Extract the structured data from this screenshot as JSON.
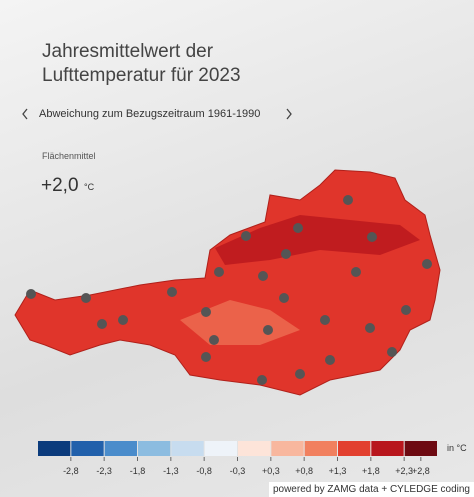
{
  "header": {
    "title_lines": [
      "Jahresmittelwert der",
      "Lufttemperatur für 2023"
    ],
    "period": "Abweichung zum Bezugszeitraum 1961-1990"
  },
  "summary": {
    "label": "Flächenmittel",
    "value": "+2,0",
    "unit": "°C"
  },
  "legend": {
    "unit": "in °C",
    "colors": [
      "#0b3b7c",
      "#2160ab",
      "#4a8ccb",
      "#8cbce0",
      "#c7dcef",
      "#eef3f9",
      "#fde4d9",
      "#f8b79e",
      "#f1805f",
      "#e2402f",
      "#b8161d",
      "#6d0a12"
    ],
    "ticks": [
      {
        "value": -2.8,
        "label": "-2,8"
      },
      {
        "value": -2.3,
        "label": "-2,3"
      },
      {
        "value": -1.8,
        "label": "-1,8"
      },
      {
        "value": -1.3,
        "label": "-1,3"
      },
      {
        "value": -0.8,
        "label": "-0,8"
      },
      {
        "value": -0.3,
        "label": "-0,3"
      },
      {
        "value": 0.3,
        "label": "+0,3"
      },
      {
        "value": 0.8,
        "label": "+0,8"
      },
      {
        "value": 1.3,
        "label": "+1,3"
      },
      {
        "value": 1.8,
        "label": "+1,8"
      },
      {
        "value": 2.3,
        "label": "+2,3"
      },
      {
        "value": 2.8,
        "label": "+2,8"
      }
    ]
  },
  "footer": {
    "credit": "powered by ZAMG data + CYLEDGE coding"
  }
}
